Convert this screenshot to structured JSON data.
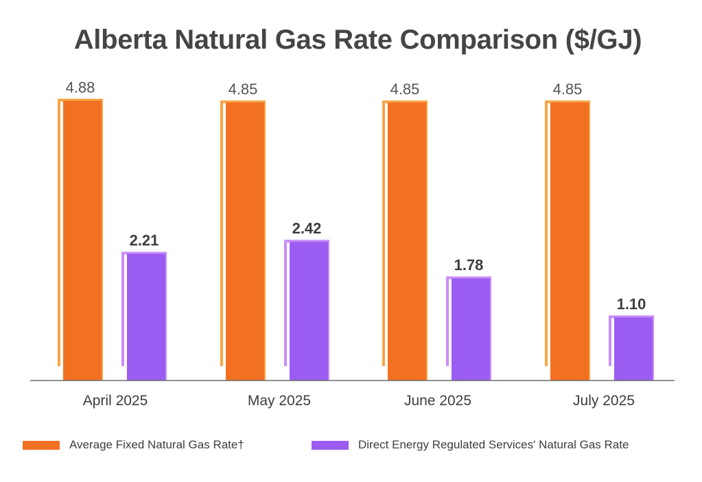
{
  "chart_data": {
    "type": "bar",
    "title": "Alberta Natural Gas Rate Comparison ($/GJ)",
    "categories": [
      "April 2025",
      "May 2025",
      "June 2025",
      "July 2025"
    ],
    "series": [
      {
        "name": "Average Fixed Natural Gas Rate†",
        "color": "#f27022",
        "outline_color": "#f7a545",
        "values": [
          4.88,
          4.85,
          4.85,
          4.85
        ],
        "labels": [
          "4.88",
          "4.85",
          "4.85",
          "4.85"
        ],
        "label_weight": "normal"
      },
      {
        "name": "Direct Energy Regulated Services' Natural Gas Rate",
        "color": "#9b5cf2",
        "outline_color": "#c98ef8",
        "values": [
          2.21,
          2.42,
          1.78,
          1.1
        ],
        "labels": [
          "2.21",
          "2.42",
          "1.78",
          "1.10"
        ],
        "label_weight": "bold"
      }
    ],
    "xlabel": "",
    "ylabel": "",
    "ylim": [
      0,
      5.0
    ],
    "grid": false,
    "legend": "bottom"
  }
}
